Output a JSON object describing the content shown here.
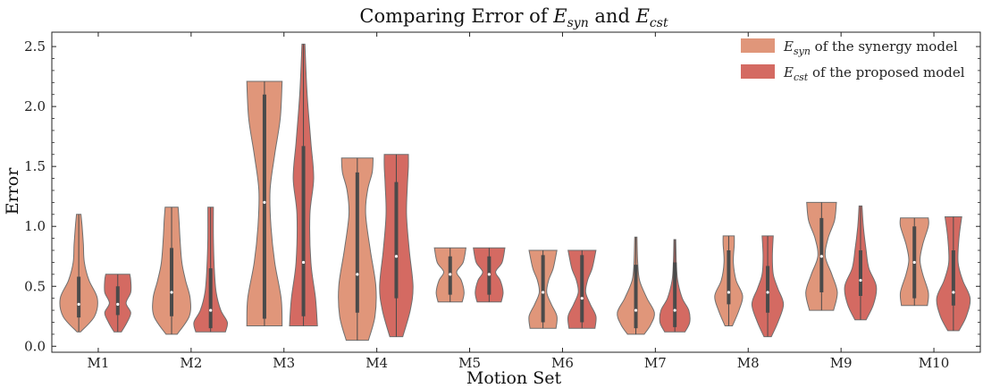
{
  "chart_data": {
    "type": "violin",
    "title_parts": {
      "prefix": "Comparing Error of ",
      "s1": "E",
      "s1_sub": "syn",
      "mid": " and ",
      "s2": "E",
      "s2_sub": "cst"
    },
    "xlabel": "Motion Set",
    "ylabel": "Error",
    "ylim": [
      -0.05,
      2.62
    ],
    "yticks": [
      "0.0",
      "0.5",
      "1.0",
      "1.5",
      "2.0",
      "2.5"
    ],
    "ytick_values": [
      0,
      0.5,
      1.0,
      1.5,
      2.0,
      2.5
    ],
    "categories": [
      "M1",
      "M2",
      "M3",
      "M4",
      "M5",
      "M6",
      "M7",
      "M8",
      "M9",
      "M10"
    ],
    "legend_position": "top-right",
    "series": [
      {
        "name_main": "E",
        "name_sub": "syn",
        "name_rest": " of the synergy model",
        "color": "#e0967a",
        "violins": [
          {
            "min": 0.12,
            "max": 1.1,
            "q1": 0.24,
            "q3": 0.58,
            "median": 0.35,
            "profile": [
              [
                0.12,
                0.1
              ],
              [
                0.25,
                0.85
              ],
              [
                0.4,
                1.0
              ],
              [
                0.55,
                0.55
              ],
              [
                0.7,
                0.3
              ],
              [
                0.85,
                0.25
              ],
              [
                1.0,
                0.18
              ],
              [
                1.1,
                0.12
              ]
            ]
          },
          {
            "min": 0.1,
            "max": 1.16,
            "q1": 0.25,
            "q3": 0.82,
            "median": 0.45,
            "profile": [
              [
                0.1,
                0.3
              ],
              [
                0.25,
                0.95
              ],
              [
                0.4,
                1.0
              ],
              [
                0.55,
                0.75
              ],
              [
                0.7,
                0.55
              ],
              [
                0.9,
                0.45
              ],
              [
                1.05,
                0.4
              ],
              [
                1.16,
                0.35
              ]
            ]
          },
          {
            "min": 0.17,
            "max": 2.21,
            "q1": 0.23,
            "q3": 2.1,
            "median": 1.2,
            "profile": [
              [
                0.17,
                0.95
              ],
              [
                0.4,
                0.9
              ],
              [
                0.7,
                0.55
              ],
              [
                1.0,
                0.35
              ],
              [
                1.3,
                0.3
              ],
              [
                1.6,
                0.55
              ],
              [
                1.9,
                0.85
              ],
              [
                2.21,
                0.95
              ]
            ]
          },
          {
            "min": 0.05,
            "max": 1.57,
            "q1": 0.28,
            "q3": 1.45,
            "median": 0.6,
            "profile": [
              [
                0.05,
                0.6
              ],
              [
                0.25,
                0.95
              ],
              [
                0.5,
                1.0
              ],
              [
                0.8,
                0.7
              ],
              [
                1.1,
                0.45
              ],
              [
                1.3,
                0.55
              ],
              [
                1.45,
                0.8
              ],
              [
                1.57,
                0.85
              ]
            ]
          },
          {
            "min": 0.37,
            "max": 0.82,
            "q1": 0.43,
            "q3": 0.75,
            "median": 0.6,
            "profile": [
              [
                0.37,
                0.65
              ],
              [
                0.45,
                0.75
              ],
              [
                0.55,
                0.6
              ],
              [
                0.62,
                0.35
              ],
              [
                0.7,
                0.7
              ],
              [
                0.82,
                0.85
              ]
            ]
          },
          {
            "min": 0.15,
            "max": 0.8,
            "q1": 0.2,
            "q3": 0.76,
            "median": 0.45,
            "profile": [
              [
                0.15,
                0.7
              ],
              [
                0.25,
                0.75
              ],
              [
                0.35,
                0.45
              ],
              [
                0.45,
                0.2
              ],
              [
                0.55,
                0.3
              ],
              [
                0.65,
                0.55
              ],
              [
                0.8,
                0.75
              ]
            ]
          },
          {
            "min": 0.1,
            "max": 0.91,
            "q1": 0.15,
            "q3": 0.68,
            "median": 0.3,
            "profile": [
              [
                0.1,
                0.45
              ],
              [
                0.18,
                0.8
              ],
              [
                0.28,
                1.0
              ],
              [
                0.4,
                0.6
              ],
              [
                0.55,
                0.2
              ],
              [
                0.7,
                0.1
              ],
              [
                0.91,
                0.06
              ]
            ]
          },
          {
            "min": 0.17,
            "max": 0.92,
            "q1": 0.35,
            "q3": 0.8,
            "median": 0.45,
            "profile": [
              [
                0.17,
                0.2
              ],
              [
                0.3,
                0.55
              ],
              [
                0.42,
                0.75
              ],
              [
                0.55,
                0.4
              ],
              [
                0.7,
                0.25
              ],
              [
                0.85,
                0.3
              ],
              [
                0.92,
                0.3
              ]
            ]
          },
          {
            "min": 0.3,
            "max": 1.2,
            "q1": 0.45,
            "q3": 1.07,
            "median": 0.75,
            "profile": [
              [
                0.3,
                0.65
              ],
              [
                0.45,
                0.85
              ],
              [
                0.6,
                0.55
              ],
              [
                0.75,
                0.2
              ],
              [
                0.9,
                0.35
              ],
              [
                1.05,
                0.7
              ],
              [
                1.2,
                0.8
              ]
            ]
          },
          {
            "min": 0.34,
            "max": 1.07,
            "q1": 0.4,
            "q3": 1.0,
            "median": 0.7,
            "profile": [
              [
                0.34,
                0.7
              ],
              [
                0.45,
                0.75
              ],
              [
                0.6,
                0.45
              ],
              [
                0.72,
                0.3
              ],
              [
                0.85,
                0.45
              ],
              [
                1.0,
                0.75
              ],
              [
                1.07,
                0.75
              ]
            ]
          }
        ]
      },
      {
        "name_main": "E",
        "name_sub": "cst",
        "name_rest": " of the proposed model",
        "color": "#d46a62",
        "violins": [
          {
            "min": 0.12,
            "max": 0.6,
            "q1": 0.26,
            "q3": 0.5,
            "median": 0.35,
            "profile": [
              [
                0.12,
                0.2
              ],
              [
                0.2,
                0.5
              ],
              [
                0.28,
                0.7
              ],
              [
                0.36,
                0.45
              ],
              [
                0.45,
                0.7
              ],
              [
                0.55,
                0.7
              ],
              [
                0.6,
                0.65
              ]
            ]
          },
          {
            "min": 0.12,
            "max": 1.16,
            "q1": 0.15,
            "q3": 0.65,
            "median": 0.3,
            "profile": [
              [
                0.12,
                0.8
              ],
              [
                0.2,
                0.9
              ],
              [
                0.3,
                0.55
              ],
              [
                0.45,
                0.3
              ],
              [
                0.65,
                0.2
              ],
              [
                0.9,
                0.15
              ],
              [
                1.16,
                0.15
              ]
            ]
          },
          {
            "min": 0.17,
            "max": 2.52,
            "q1": 0.25,
            "q3": 1.67,
            "median": 0.7,
            "profile": [
              [
                0.17,
                0.75
              ],
              [
                0.4,
                0.65
              ],
              [
                0.7,
                0.4
              ],
              [
                1.1,
                0.35
              ],
              [
                1.4,
                0.55
              ],
              [
                1.7,
                0.4
              ],
              [
                2.1,
                0.2
              ],
              [
                2.52,
                0.08
              ]
            ]
          },
          {
            "min": 0.08,
            "max": 1.6,
            "q1": 0.4,
            "q3": 1.37,
            "median": 0.75,
            "profile": [
              [
                0.08,
                0.35
              ],
              [
                0.3,
                0.75
              ],
              [
                0.5,
                0.9
              ],
              [
                0.8,
                0.7
              ],
              [
                1.1,
                0.55
              ],
              [
                1.35,
                0.6
              ],
              [
                1.5,
                0.65
              ],
              [
                1.6,
                0.65
              ]
            ]
          },
          {
            "min": 0.37,
            "max": 0.82,
            "q1": 0.43,
            "q3": 0.75,
            "median": 0.6,
            "profile": [
              [
                0.37,
                0.65
              ],
              [
                0.45,
                0.75
              ],
              [
                0.55,
                0.6
              ],
              [
                0.62,
                0.35
              ],
              [
                0.7,
                0.7
              ],
              [
                0.82,
                0.85
              ]
            ]
          },
          {
            "min": 0.15,
            "max": 0.8,
            "q1": 0.2,
            "q3": 0.76,
            "median": 0.4,
            "profile": [
              [
                0.15,
                0.7
              ],
              [
                0.25,
                0.75
              ],
              [
                0.35,
                0.45
              ],
              [
                0.45,
                0.2
              ],
              [
                0.55,
                0.3
              ],
              [
                0.65,
                0.55
              ],
              [
                0.8,
                0.75
              ]
            ]
          },
          {
            "min": 0.12,
            "max": 0.89,
            "q1": 0.16,
            "q3": 0.7,
            "median": 0.3,
            "profile": [
              [
                0.12,
                0.55
              ],
              [
                0.2,
                0.8
              ],
              [
                0.3,
                0.75
              ],
              [
                0.4,
                0.4
              ],
              [
                0.55,
                0.15
              ],
              [
                0.7,
                0.08
              ],
              [
                0.89,
                0.05
              ]
            ]
          },
          {
            "min": 0.08,
            "max": 0.92,
            "q1": 0.28,
            "q3": 0.67,
            "median": 0.45,
            "profile": [
              [
                0.08,
                0.2
              ],
              [
                0.2,
                0.55
              ],
              [
                0.35,
                0.85
              ],
              [
                0.48,
                0.55
              ],
              [
                0.6,
                0.3
              ],
              [
                0.75,
                0.25
              ],
              [
                0.92,
                0.3
              ]
            ]
          },
          {
            "min": 0.22,
            "max": 1.17,
            "q1": 0.42,
            "q3": 0.8,
            "median": 0.55,
            "profile": [
              [
                0.22,
                0.3
              ],
              [
                0.35,
                0.7
              ],
              [
                0.5,
                0.85
              ],
              [
                0.65,
                0.45
              ],
              [
                0.8,
                0.3
              ],
              [
                1.0,
                0.15
              ],
              [
                1.17,
                0.08
              ]
            ]
          },
          {
            "min": 0.13,
            "max": 1.08,
            "q1": 0.34,
            "q3": 0.8,
            "median": 0.45,
            "profile": [
              [
                0.13,
                0.3
              ],
              [
                0.25,
                0.7
              ],
              [
                0.4,
                0.9
              ],
              [
                0.55,
                0.5
              ],
              [
                0.7,
                0.25
              ],
              [
                0.9,
                0.3
              ],
              [
                1.08,
                0.45
              ]
            ]
          }
        ]
      }
    ]
  }
}
